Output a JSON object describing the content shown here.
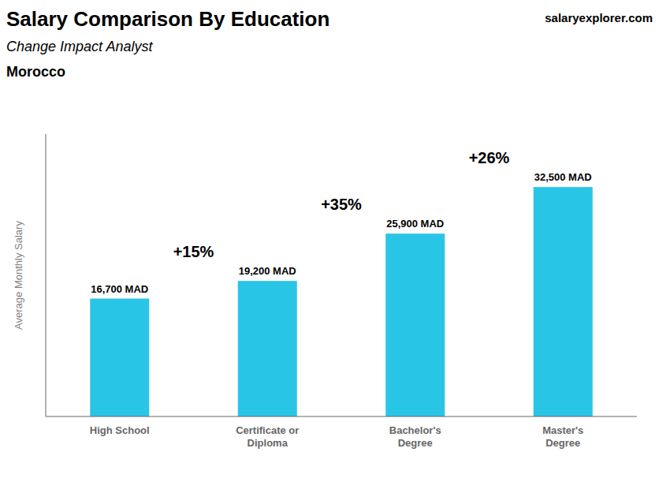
{
  "chart_data": {
    "type": "bar",
    "title": "Salary Comparison By Education",
    "subtitle": "Change Impact Analyst",
    "country": "Morocco",
    "source": "salaryexplorer.com",
    "categories": [
      "High School",
      "Certificate or\nDiploma",
      "Bachelor's\nDegree",
      "Master's\nDegree"
    ],
    "values": [
      16700,
      19200,
      25900,
      32500
    ],
    "value_labels": [
      "16,700 MAD",
      "19,200 MAD",
      "25,900 MAD",
      "32,500 MAD"
    ],
    "data_labels": true,
    "annotations": [
      "+15%",
      "+35%",
      "+26%"
    ],
    "ylabel": "Average Monthly Salary",
    "color": "#29c5e6",
    "ylim": [
      0,
      40000
    ],
    "grid": false,
    "tick_labels": "x"
  }
}
